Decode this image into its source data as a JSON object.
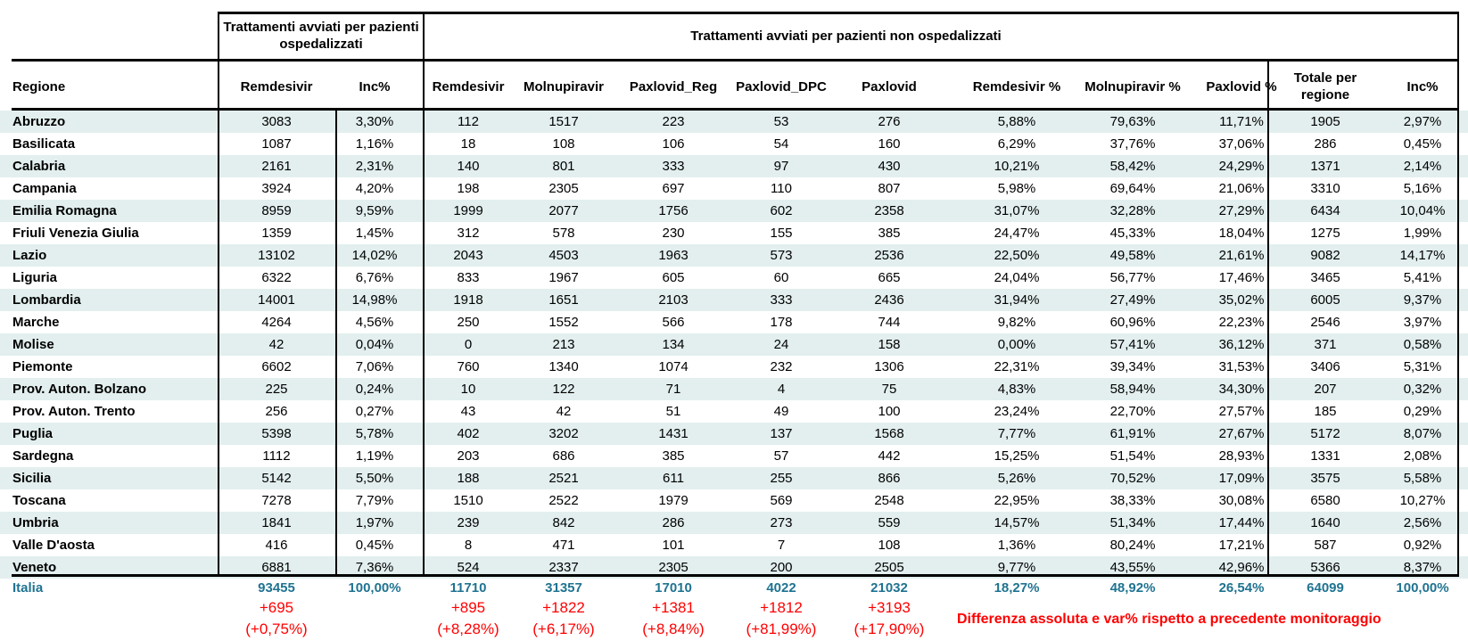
{
  "header": {
    "group_hosp": "Trattamenti avviati per pazienti ospedalizzati",
    "group_nonhosp": "Trattamenti avviati per pazienti non ospedalizzati",
    "columns": [
      "Regione",
      "Remdesivir",
      "Inc%",
      "Remdesivir",
      "Molnupiravir",
      "Paxlovid_Reg",
      "Paxlovid_DPC",
      "Paxlovid",
      "Remdesivir %",
      "Molnupiravir %",
      "Paxlovid %",
      "Totale per regione",
      "Inc%"
    ]
  },
  "colors": {
    "row_shade": "#e2efee",
    "total_text": "#1f7391",
    "diff_text": "#ff0000"
  },
  "rows": [
    [
      "Abruzzo",
      "3083",
      "3,30%",
      "112",
      "1517",
      "223",
      "53",
      "276",
      "5,88%",
      "79,63%",
      "11,71%",
      "1905",
      "2,97%"
    ],
    [
      "Basilicata",
      "1087",
      "1,16%",
      "18",
      "108",
      "106",
      "54",
      "160",
      "6,29%",
      "37,76%",
      "37,06%",
      "286",
      "0,45%"
    ],
    [
      "Calabria",
      "2161",
      "2,31%",
      "140",
      "801",
      "333",
      "97",
      "430",
      "10,21%",
      "58,42%",
      "24,29%",
      "1371",
      "2,14%"
    ],
    [
      "Campania",
      "3924",
      "4,20%",
      "198",
      "2305",
      "697",
      "110",
      "807",
      "5,98%",
      "69,64%",
      "21,06%",
      "3310",
      "5,16%"
    ],
    [
      "Emilia Romagna",
      "8959",
      "9,59%",
      "1999",
      "2077",
      "1756",
      "602",
      "2358",
      "31,07%",
      "32,28%",
      "27,29%",
      "6434",
      "10,04%"
    ],
    [
      "Friuli Venezia Giulia",
      "1359",
      "1,45%",
      "312",
      "578",
      "230",
      "155",
      "385",
      "24,47%",
      "45,33%",
      "18,04%",
      "1275",
      "1,99%"
    ],
    [
      "Lazio",
      "13102",
      "14,02%",
      "2043",
      "4503",
      "1963",
      "573",
      "2536",
      "22,50%",
      "49,58%",
      "21,61%",
      "9082",
      "14,17%"
    ],
    [
      "Liguria",
      "6322",
      "6,76%",
      "833",
      "1967",
      "605",
      "60",
      "665",
      "24,04%",
      "56,77%",
      "17,46%",
      "3465",
      "5,41%"
    ],
    [
      "Lombardia",
      "14001",
      "14,98%",
      "1918",
      "1651",
      "2103",
      "333",
      "2436",
      "31,94%",
      "27,49%",
      "35,02%",
      "6005",
      "9,37%"
    ],
    [
      "Marche",
      "4264",
      "4,56%",
      "250",
      "1552",
      "566",
      "178",
      "744",
      "9,82%",
      "60,96%",
      "22,23%",
      "2546",
      "3,97%"
    ],
    [
      "Molise",
      "42",
      "0,04%",
      "0",
      "213",
      "134",
      "24",
      "158",
      "0,00%",
      "57,41%",
      "36,12%",
      "371",
      "0,58%"
    ],
    [
      "Piemonte",
      "6602",
      "7,06%",
      "760",
      "1340",
      "1074",
      "232",
      "1306",
      "22,31%",
      "39,34%",
      "31,53%",
      "3406",
      "5,31%"
    ],
    [
      "Prov. Auton. Bolzano",
      "225",
      "0,24%",
      "10",
      "122",
      "71",
      "4",
      "75",
      "4,83%",
      "58,94%",
      "34,30%",
      "207",
      "0,32%"
    ],
    [
      "Prov. Auton. Trento",
      "256",
      "0,27%",
      "43",
      "42",
      "51",
      "49",
      "100",
      "23,24%",
      "22,70%",
      "27,57%",
      "185",
      "0,29%"
    ],
    [
      "Puglia",
      "5398",
      "5,78%",
      "402",
      "3202",
      "1431",
      "137",
      "1568",
      "7,77%",
      "61,91%",
      "27,67%",
      "5172",
      "8,07%"
    ],
    [
      "Sardegna",
      "1112",
      "1,19%",
      "203",
      "686",
      "385",
      "57",
      "442",
      "15,25%",
      "51,54%",
      "28,93%",
      "1331",
      "2,08%"
    ],
    [
      "Sicilia",
      "5142",
      "5,50%",
      "188",
      "2521",
      "611",
      "255",
      "866",
      "5,26%",
      "70,52%",
      "17,09%",
      "3575",
      "5,58%"
    ],
    [
      "Toscana",
      "7278",
      "7,79%",
      "1510",
      "2522",
      "1979",
      "569",
      "2548",
      "22,95%",
      "38,33%",
      "30,08%",
      "6580",
      "10,27%"
    ],
    [
      "Umbria",
      "1841",
      "1,97%",
      "239",
      "842",
      "286",
      "273",
      "559",
      "14,57%",
      "51,34%",
      "17,44%",
      "1640",
      "2,56%"
    ],
    [
      "Valle D'aosta",
      "416",
      "0,45%",
      "8",
      "471",
      "101",
      "7",
      "108",
      "1,36%",
      "80,24%",
      "17,21%",
      "587",
      "0,92%"
    ],
    [
      "Veneto",
      "6881",
      "7,36%",
      "524",
      "2337",
      "2305",
      "200",
      "2505",
      "9,77%",
      "43,55%",
      "42,96%",
      "5366",
      "8,37%"
    ]
  ],
  "total": [
    "Italia",
    "93455",
    "100,00%",
    "11710",
    "31357",
    "17010",
    "4022",
    "21032",
    "18,27%",
    "48,92%",
    "26,54%",
    "64099",
    "100,00%"
  ],
  "differences": [
    {
      "col": 1,
      "abs": "+695",
      "pct": "(+0,75%)"
    },
    {
      "col": 3,
      "abs": "+895",
      "pct": "(+8,28%)"
    },
    {
      "col": 4,
      "abs": "+1822",
      "pct": "(+6,17%)"
    },
    {
      "col": 5,
      "abs": "+1381",
      "pct": "(+8,84%)"
    },
    {
      "col": 6,
      "abs": "+1812",
      "pct": "(+81,99%)"
    },
    {
      "col": 7,
      "abs": "+3193",
      "pct": "(+17,90%)"
    }
  ],
  "note": "Differenza assoluta e var% rispetto a precedente monitoraggio"
}
